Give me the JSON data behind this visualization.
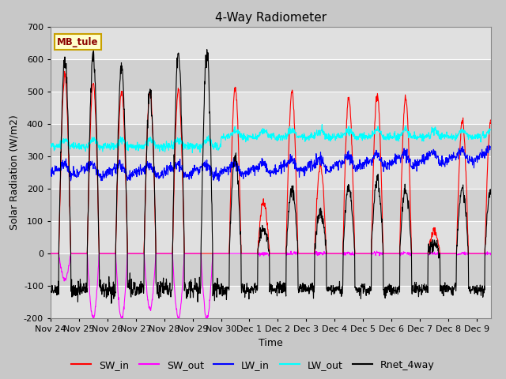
{
  "title": "4-Way Radiometer",
  "xlabel": "Time",
  "ylabel": "Solar Radiation (W/m2)",
  "station_label": "MB_tule",
  "ylim": [
    -200,
    700
  ],
  "yticks": [
    -200,
    -100,
    0,
    100,
    200,
    300,
    400,
    500,
    600,
    700
  ],
  "tick_labels": [
    "Nov 24",
    "Nov 25",
    "Nov 26",
    "Nov 27",
    "Nov 28",
    "Nov 29",
    "Nov 30",
    "Dec 1",
    "Dec 2",
    "Dec 3",
    "Dec 4",
    "Dec 5",
    "Dec 6",
    "Dec 7",
    "Dec 8",
    "Dec 9"
  ],
  "legend_entries": [
    "SW_in",
    "SW_out",
    "LW_in",
    "LW_out",
    "Rnet_4way"
  ],
  "line_colors": [
    "red",
    "magenta",
    "blue",
    "cyan",
    "black"
  ],
  "fig_facecolor": "#c8c8c8",
  "ax_facecolor": "#e8e8e8",
  "band_colors": [
    "#e0e0e0",
    "#d0d0d0"
  ],
  "title_fontsize": 11,
  "label_fontsize": 9,
  "tick_fontsize": 8,
  "legend_fontsize": 9
}
